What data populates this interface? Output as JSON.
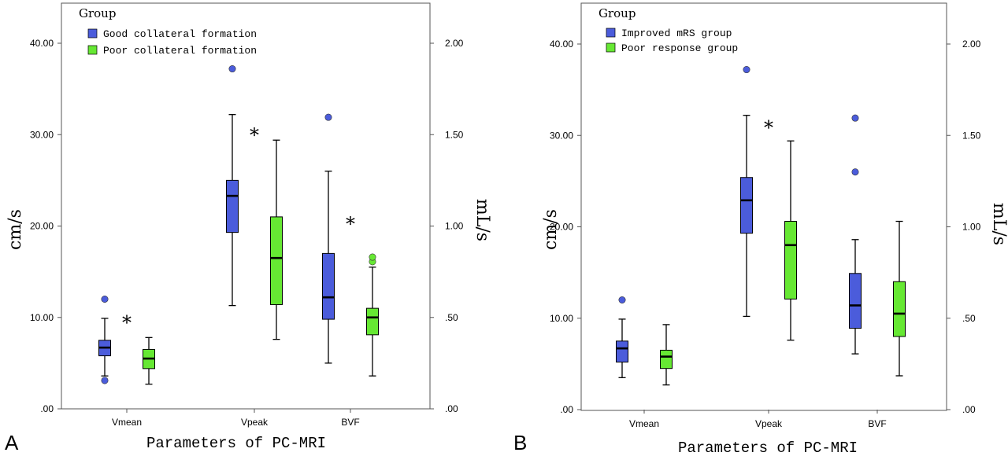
{
  "colors": {
    "good": "#4b5cdb",
    "poor": "#66e833",
    "frame": "#555555"
  },
  "chart_data": [
    {
      "type": "boxplot",
      "panel_label": "A",
      "legend_title": "Group",
      "legend_position": "top-left",
      "xlabel": "Parameters of PC-MRI",
      "ylabel_left": "cm/s",
      "ylabel_right": "mL/s",
      "ylim_left": [
        0,
        44
      ],
      "ylim_right": [
        0,
        2.2
      ],
      "left_ticks": [
        0,
        10,
        20,
        30,
        40
      ],
      "left_tick_labels": [
        ".00",
        "10.00",
        "20.00",
        "30.00",
        "40.00"
      ],
      "right_ticks": [
        0,
        0.5,
        1,
        1.5,
        2
      ],
      "right_tick_labels": [
        ".00",
        ".50",
        "1.00",
        "1.50",
        "2.00"
      ],
      "categories": [
        "Vmean",
        "Vpeak",
        "BVF"
      ],
      "series": [
        {
          "name": "Good collateral formation",
          "boxes": [
            {
              "whisker_low": 3.6,
              "q1": 5.8,
              "median": 6.7,
              "q3": 7.5,
              "whisker_high": 9.9,
              "outliers": [
                12.0,
                3.1
              ]
            },
            {
              "whisker_low": 11.3,
              "q1": 19.3,
              "median": 23.3,
              "q3": 25.0,
              "whisker_high": 32.2,
              "outliers": [
                37.2
              ]
            },
            {
              "whisker_low": 5.0,
              "q1": 9.8,
              "median": 12.2,
              "q3": 17.0,
              "whisker_high": 26.0,
              "outliers": [
                31.9
              ]
            }
          ]
        },
        {
          "name": "Poor collateral formation",
          "boxes": [
            {
              "whisker_low": 2.7,
              "q1": 4.4,
              "median": 5.5,
              "q3": 6.5,
              "whisker_high": 7.8,
              "outliers": []
            },
            {
              "whisker_low": 7.6,
              "q1": 11.4,
              "median": 16.5,
              "q3": 21.0,
              "whisker_high": 29.4,
              "outliers": []
            },
            {
              "whisker_low": 3.6,
              "q1": 8.1,
              "median": 10.0,
              "q3": 11.0,
              "whisker_high": 15.5,
              "outliers": [
                16.1,
                16.6
              ]
            }
          ]
        }
      ],
      "annotations": [
        {
          "text": "*",
          "category": 0,
          "y": 9.6
        },
        {
          "text": "*",
          "category": 1,
          "y": 30.1
        },
        {
          "text": "*",
          "category": 2,
          "y": 20.4
        }
      ]
    },
    {
      "type": "boxplot",
      "panel_label": "B",
      "legend_title": "Group",
      "legend_position": "top-left",
      "xlabel": "Parameters of PC-MRI",
      "ylabel_left": "cm/s",
      "ylabel_right": "mL/s",
      "ylim_left": [
        0,
        44
      ],
      "ylim_right": [
        0,
        2.2
      ],
      "left_ticks": [
        0,
        10,
        20,
        30,
        40
      ],
      "left_tick_labels": [
        ".00",
        "10.00",
        "20.00",
        "30.00",
        "40.00"
      ],
      "right_ticks": [
        0,
        0.5,
        1,
        1.5,
        2
      ],
      "right_tick_labels": [
        ".00",
        ".50",
        "1.00",
        "1.50",
        "2.00"
      ],
      "categories": [
        "Vmean",
        "Vpeak",
        "BVF"
      ],
      "series": [
        {
          "name": "Improved mRS group",
          "boxes": [
            {
              "whisker_low": 3.5,
              "q1": 5.2,
              "median": 6.7,
              "q3": 7.5,
              "whisker_high": 9.9,
              "outliers": [
                12.0
              ]
            },
            {
              "whisker_low": 10.2,
              "q1": 19.3,
              "median": 22.9,
              "q3": 25.4,
              "whisker_high": 32.2,
              "outliers": [
                37.2
              ]
            },
            {
              "whisker_low": 6.1,
              "q1": 8.9,
              "median": 11.4,
              "q3": 14.9,
              "whisker_high": 18.6,
              "outliers": [
                26.0,
                31.9
              ]
            }
          ]
        },
        {
          "name": "Poor response group",
          "boxes": [
            {
              "whisker_low": 2.7,
              "q1": 4.5,
              "median": 5.8,
              "q3": 6.5,
              "whisker_high": 9.3,
              "outliers": []
            },
            {
              "whisker_low": 7.6,
              "q1": 12.1,
              "median": 18.0,
              "q3": 20.6,
              "whisker_high": 29.4,
              "outliers": []
            },
            {
              "whisker_low": 3.7,
              "q1": 8.0,
              "median": 10.5,
              "q3": 14.0,
              "whisker_high": 20.6,
              "outliers": []
            }
          ]
        }
      ],
      "annotations": [
        {
          "text": "*",
          "category": 1,
          "y": 31.0
        }
      ]
    }
  ]
}
